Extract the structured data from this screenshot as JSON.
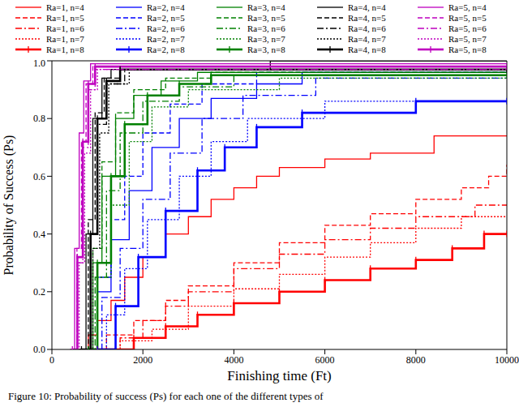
{
  "chart_data": {
    "type": "line",
    "title": null,
    "x_label": "Finishing time (Ft)",
    "y_label": "Probability of Success (Ps)",
    "caption": "Figure 10: Probability of success (Ps) for each one of the different types of",
    "xlim": [
      0,
      10000
    ],
    "xticks": [
      0,
      2000,
      4000,
      6000,
      8000,
      10000
    ],
    "ylim": [
      0,
      1
    ],
    "yticks": [
      {
        "value": 0,
        "label": "0.0"
      },
      0.2,
      0.4,
      0.6,
      0.8,
      {
        "value": 1,
        "label": "1.0"
      }
    ],
    "legend": "top",
    "grid": false,
    "series": [
      {
        "name": "Ra=1, n=4",
        "color": "#ff0000",
        "line_style": "solid",
        "x": [
          500,
          800,
          1000,
          1300,
          1600,
          2000,
          2500,
          3000,
          3500,
          4000,
          4500,
          5000,
          6000,
          7000,
          8400,
          10000
        ],
        "values": [
          0,
          0.05,
          0.1,
          0.17,
          0.25,
          0.32,
          0.4,
          0.46,
          0.52,
          0.56,
          0.6,
          0.63,
          0.66,
          0.68,
          0.74,
          0.74
        ]
      },
      {
        "name": "Ra=1, n=5",
        "color": "#ff0000",
        "line_style": "dashed",
        "x": [
          700,
          1200,
          1800,
          2500,
          3000,
          4000,
          5000,
          6000,
          7000,
          8000,
          9000,
          9600,
          10000
        ],
        "values": [
          0,
          0.05,
          0.1,
          0.17,
          0.22,
          0.3,
          0.37,
          0.43,
          0.47,
          0.52,
          0.56,
          0.6,
          0.64
        ]
      },
      {
        "name": "Ra=1, n=6",
        "color": "#ff0000",
        "line_style": "dashdot",
        "x": [
          800,
          1500,
          2000,
          2500,
          3000,
          4000,
          5000,
          6000,
          7000,
          8000,
          9300,
          10000
        ],
        "values": [
          0,
          0.04,
          0.1,
          0.15,
          0.2,
          0.28,
          0.33,
          0.38,
          0.42,
          0.46,
          0.5,
          0.5
        ]
      },
      {
        "name": "Ra=1, n=7",
        "color": "#ff0000",
        "line_style": "dotted",
        "x": [
          800,
          1500,
          2200,
          3000,
          4000,
          5000,
          6000,
          7000,
          8000,
          9000,
          10000
        ],
        "values": [
          0,
          0.03,
          0.07,
          0.15,
          0.21,
          0.26,
          0.32,
          0.37,
          0.42,
          0.46,
          0.46
        ]
      },
      {
        "name": "Ra=1, n=8",
        "color": "#ff0000",
        "line_style": "thick",
        "marker": "vline",
        "x": [
          1000,
          1800,
          2500,
          3200,
          4000,
          5000,
          6000,
          7000,
          8000,
          8800,
          9500,
          10000
        ],
        "values": [
          0,
          0.04,
          0.08,
          0.12,
          0.16,
          0.2,
          0.24,
          0.28,
          0.31,
          0.35,
          0.4,
          0.4
        ]
      },
      {
        "name": "Ra=2, n=4",
        "color": "#0000ff",
        "line_style": "solid",
        "x": [
          700,
          1000,
          1300,
          1700,
          2200,
          2800,
          3500,
          4500,
          5500,
          10000
        ],
        "values": [
          0,
          0.2,
          0.38,
          0.55,
          0.7,
          0.8,
          0.87,
          0.92,
          0.96,
          0.96
        ]
      },
      {
        "name": "Ra=2, n=5",
        "color": "#0000ff",
        "line_style": "dashed",
        "x": [
          700,
          1000,
          1300,
          1600,
          2000,
          2600,
          3300,
          4500,
          10000
        ],
        "values": [
          0,
          0.25,
          0.45,
          0.6,
          0.75,
          0.85,
          0.92,
          0.96,
          0.96
        ]
      },
      {
        "name": "Ra=2, n=6",
        "color": "#0000ff",
        "line_style": "dashdot",
        "x": [
          800,
          1100,
          1500,
          2000,
          2600,
          3300,
          4200,
          5800,
          10000
        ],
        "values": [
          0,
          0.18,
          0.35,
          0.52,
          0.68,
          0.8,
          0.88,
          0.94,
          0.94
        ]
      },
      {
        "name": "Ra=2, n=7",
        "color": "#0000ff",
        "line_style": "dotted",
        "x": [
          900,
          1200,
          1600,
          2100,
          2800,
          3500,
          4300,
          6000,
          10000
        ],
        "values": [
          0,
          0.12,
          0.28,
          0.45,
          0.6,
          0.72,
          0.8,
          0.86,
          0.86
        ]
      },
      {
        "name": "Ra=2, n=8",
        "color": "#0000ff",
        "line_style": "thick",
        "marker": "vline",
        "x": [
          1000,
          1400,
          1900,
          2500,
          3200,
          3800,
          4500,
          5500,
          8000,
          10000
        ],
        "values": [
          0,
          0.15,
          0.32,
          0.48,
          0.62,
          0.7,
          0.77,
          0.82,
          0.86,
          0.86
        ]
      },
      {
        "name": "Ra=3, n=4",
        "color": "#008000",
        "line_style": "solid",
        "x": [
          700,
          900,
          1100,
          1400,
          1800,
          2400,
          3200,
          10000
        ],
        "values": [
          0,
          0.3,
          0.6,
          0.8,
          0.88,
          0.93,
          0.96,
          0.96
        ]
      },
      {
        "name": "Ra=3, n=5",
        "color": "#008000",
        "line_style": "dashed",
        "x": [
          700,
          900,
          1100,
          1400,
          1800,
          2500,
          3500,
          10000
        ],
        "values": [
          0,
          0.35,
          0.65,
          0.82,
          0.9,
          0.94,
          0.96,
          0.96
        ]
      },
      {
        "name": "Ra=3, n=6",
        "color": "#008000",
        "line_style": "dashdot",
        "x": [
          750,
          950,
          1200,
          1500,
          2000,
          2800,
          4000,
          10000
        ],
        "values": [
          0,
          0.25,
          0.55,
          0.75,
          0.86,
          0.91,
          0.95,
          0.95
        ]
      },
      {
        "name": "Ra=3, n=7",
        "color": "#008000",
        "line_style": "dotted",
        "x": [
          800,
          1000,
          1300,
          1700,
          2200,
          3000,
          5000,
          10000
        ],
        "values": [
          0,
          0.25,
          0.5,
          0.72,
          0.84,
          0.9,
          0.94,
          0.94
        ]
      },
      {
        "name": "Ra=3, n=8",
        "color": "#008000",
        "line_style": "thick",
        "marker": "vline",
        "x": [
          800,
          1000,
          1300,
          1600,
          2100,
          2800,
          3500,
          10000
        ],
        "values": [
          0,
          0.3,
          0.6,
          0.78,
          0.88,
          0.92,
          0.95,
          0.95
        ]
      },
      {
        "name": "Ra=4, n=4",
        "color": "#000000",
        "line_style": "solid",
        "x": [
          600,
          750,
          900,
          1100,
          1300,
          4800,
          10000
        ],
        "values": [
          0,
          0.4,
          0.8,
          0.94,
          0.97,
          1,
          1
        ]
      },
      {
        "name": "Ra=4, n=5",
        "color": "#000000",
        "line_style": "dashed",
        "x": [
          600,
          800,
          950,
          1150,
          1500,
          10000
        ],
        "values": [
          0,
          0.45,
          0.82,
          0.94,
          0.98,
          0.98
        ]
      },
      {
        "name": "Ra=4, n=6",
        "color": "#000000",
        "line_style": "dashdot",
        "x": [
          650,
          850,
          1000,
          1200,
          1600,
          10000
        ],
        "values": [
          0,
          0.4,
          0.78,
          0.92,
          0.97,
          0.97
        ]
      },
      {
        "name": "Ra=4, n=7",
        "color": "#000000",
        "line_style": "dotted",
        "x": [
          700,
          900,
          1050,
          1250,
          1700,
          10000
        ],
        "values": [
          0,
          0.35,
          0.75,
          0.92,
          0.97,
          0.97
        ]
      },
      {
        "name": "Ra=4, n=8",
        "color": "#000000",
        "line_style": "thick",
        "marker": "vline",
        "x": [
          650,
          850,
          1000,
          1200,
          1500,
          10000
        ],
        "values": [
          0,
          0.4,
          0.8,
          0.93,
          0.97,
          0.97
        ]
      },
      {
        "name": "Ra=5, n=4",
        "color": "#bf00bf",
        "line_style": "solid",
        "x": [
          400,
          500,
          600,
          700,
          850,
          10000
        ],
        "values": [
          0,
          0.35,
          0.75,
          0.93,
          0.99,
          0.99
        ]
      },
      {
        "name": "Ra=5, n=5",
        "color": "#bf00bf",
        "line_style": "dashed",
        "x": [
          450,
          550,
          650,
          750,
          900,
          10000
        ],
        "values": [
          0,
          0.35,
          0.72,
          0.92,
          0.98,
          0.98
        ]
      },
      {
        "name": "Ra=5, n=6",
        "color": "#bf00bf",
        "line_style": "dashdot",
        "x": [
          450,
          550,
          680,
          800,
          950,
          10000
        ],
        "values": [
          0,
          0.3,
          0.7,
          0.9,
          0.97,
          0.97
        ]
      },
      {
        "name": "Ra=5, n=7",
        "color": "#bf00bf",
        "line_style": "dotted",
        "x": [
          500,
          600,
          720,
          850,
          1000,
          10000
        ],
        "values": [
          0,
          0.3,
          0.68,
          0.9,
          0.97,
          0.97
        ]
      },
      {
        "name": "Ra=5, n=8",
        "color": "#bf00bf",
        "line_style": "thick",
        "marker": "vline",
        "x": [
          450,
          560,
          680,
          800,
          950,
          10000
        ],
        "values": [
          0,
          0.32,
          0.72,
          0.92,
          0.98,
          0.98
        ]
      }
    ]
  }
}
